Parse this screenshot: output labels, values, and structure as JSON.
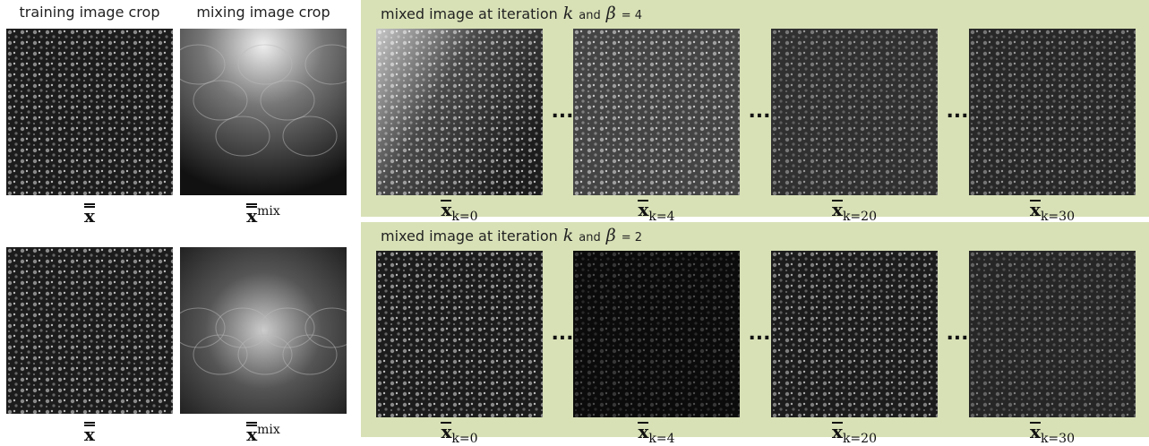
{
  "left": {
    "headers": [
      "training image crop",
      "mixing image crop"
    ],
    "rows": [
      {
        "training": {
          "base": "x"
        },
        "mixing": {
          "base": "x",
          "sup": "mix"
        }
      },
      {
        "training": {
          "base": "x"
        },
        "mixing": {
          "base": "x",
          "sup": "mix"
        }
      }
    ]
  },
  "panels": [
    {
      "title": "mixed image at iteration",
      "variable": "k",
      "conjunction": "and",
      "parameter": "β",
      "parameter_value": "= 4",
      "ellipsis": "...",
      "frames": [
        {
          "base": "x",
          "sub": "k=0"
        },
        {
          "base": "x",
          "sub": "k=4"
        },
        {
          "base": "x",
          "sub": "k=20"
        },
        {
          "base": "x",
          "sub": "k=30"
        }
      ]
    },
    {
      "title": "mixed image at iteration",
      "variable": "k",
      "conjunction": "and",
      "parameter": "β",
      "parameter_value": "= 2",
      "ellipsis": "...",
      "frames": [
        {
          "base": "x",
          "sub": "k=0"
        },
        {
          "base": "x",
          "sub": "k=4"
        },
        {
          "base": "x",
          "sub": "k=20"
        },
        {
          "base": "x",
          "sub": "k=30"
        }
      ]
    }
  ]
}
